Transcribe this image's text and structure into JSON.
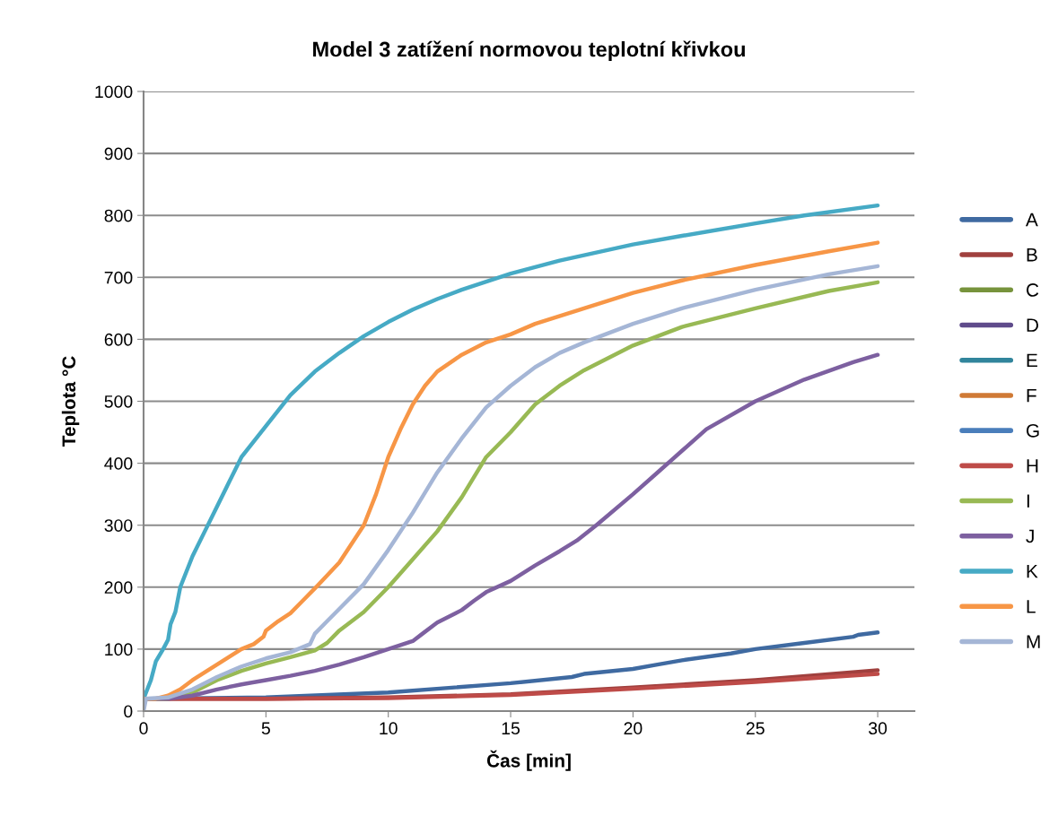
{
  "chart_data": {
    "type": "line",
    "title": "Model 3 zatížení normovou teplotní křivkou",
    "xlabel": "Čas [min]",
    "ylabel": "Teplota °C",
    "xlim": [
      0,
      31.5
    ],
    "xticks": [
      0,
      5,
      10,
      15,
      20,
      25,
      30
    ],
    "ylim": [
      0,
      1000
    ],
    "yticks": [
      0,
      100,
      200,
      300,
      400,
      500,
      600,
      700,
      800,
      900,
      1000
    ],
    "grid": "y",
    "legend": "right",
    "marker": "none",
    "line_style": "solid",
    "series": [
      {
        "name": "A",
        "color": "#3f6aa1",
        "x": [
          0,
          5,
          10,
          15,
          17.5,
          18,
          20,
          21,
          22,
          24,
          25,
          27,
          29,
          29.2,
          30
        ],
        "values": [
          20,
          22,
          30,
          45,
          55,
          60,
          68,
          75,
          82,
          93,
          100,
          110,
          120,
          123,
          127
        ]
      },
      {
        "name": "B",
        "color": "#a0403e",
        "x": [
          0,
          5,
          10,
          15,
          20,
          25,
          30
        ],
        "values": [
          20,
          20,
          22,
          27,
          38,
          50,
          66
        ]
      },
      {
        "name": "C",
        "color": "#77933c"
      },
      {
        "name": "D",
        "color": "#5f4b8b"
      },
      {
        "name": "E",
        "color": "#31859c"
      },
      {
        "name": "F",
        "color": "#d07a35"
      },
      {
        "name": "G",
        "color": "#4a7ebb"
      },
      {
        "name": "H",
        "color": "#be4b48",
        "x": [
          0,
          5,
          10,
          15,
          20,
          25,
          30
        ],
        "values": [
          20,
          20,
          21,
          26,
          36,
          47,
          60
        ]
      },
      {
        "name": "I",
        "color": "#98b954",
        "x": [
          0,
          1,
          2,
          3,
          4,
          5,
          6,
          7,
          7.5,
          8,
          9,
          10,
          11,
          12,
          13,
          14,
          15,
          16,
          17,
          18,
          20,
          22,
          25,
          28,
          30
        ],
        "values": [
          20,
          20,
          30,
          50,
          65,
          77,
          87,
          98,
          110,
          130,
          160,
          200,
          245,
          290,
          345,
          410,
          450,
          495,
          525,
          550,
          590,
          620,
          650,
          678,
          692
        ]
      },
      {
        "name": "J",
        "color": "#7d60a0",
        "x": [
          0,
          1,
          2,
          3,
          4,
          5,
          6,
          7,
          8,
          9,
          10,
          11,
          11.4,
          12,
          13,
          13.5,
          14,
          15,
          16,
          17,
          17.7,
          18.5,
          20,
          21,
          22,
          23,
          25,
          27,
          29,
          30
        ],
        "values": [
          20,
          20,
          25,
          35,
          43,
          50,
          57,
          65,
          75,
          87,
          100,
          113,
          125,
          143,
          163,
          178,
          192,
          210,
          235,
          258,
          275,
          300,
          350,
          385,
          420,
          455,
          500,
          535,
          563,
          575
        ]
      },
      {
        "name": "K",
        "color": "#46aac5",
        "x": [
          0,
          0.3,
          0.5,
          0.8,
          1,
          1.1,
          1.3,
          1.5,
          2,
          2.5,
          3,
          3.5,
          4,
          5,
          6,
          7,
          8,
          9,
          10,
          11,
          12,
          13,
          14,
          15,
          17,
          20,
          22,
          25,
          27,
          30
        ],
        "values": [
          20,
          50,
          80,
          100,
          115,
          140,
          160,
          200,
          250,
          290,
          330,
          370,
          410,
          460,
          510,
          548,
          578,
          605,
          628,
          648,
          665,
          680,
          693,
          706,
          727,
          753,
          767,
          787,
          800,
          816
        ]
      },
      {
        "name": "L",
        "color": "#f79646",
        "x": [
          0,
          0.5,
          1,
          1.5,
          2,
          3,
          4,
          4.5,
          4.9,
          5,
          5.5,
          6,
          6.5,
          7,
          8,
          9,
          9.5,
          10,
          10.5,
          11,
          11.5,
          12,
          13,
          14,
          15,
          16,
          18,
          20,
          22,
          25,
          28,
          30
        ],
        "values": [
          20,
          20,
          25,
          35,
          50,
          75,
          100,
          108,
          120,
          130,
          145,
          158,
          178,
          198,
          240,
          300,
          350,
          410,
          455,
          495,
          525,
          548,
          575,
          595,
          608,
          625,
          650,
          675,
          695,
          720,
          742,
          756
        ]
      },
      {
        "name": "M",
        "color": "#a5b6d6",
        "x": [
          0,
          0.1,
          1,
          2,
          3,
          4,
          5,
          6,
          6.8,
          7,
          7.5,
          8,
          9,
          10,
          11,
          12,
          13,
          14,
          15,
          16,
          17,
          18,
          20,
          22,
          25,
          28,
          30
        ],
        "values": [
          0,
          20,
          22,
          35,
          55,
          72,
          85,
          95,
          108,
          125,
          145,
          165,
          205,
          260,
          320,
          385,
          440,
          490,
          525,
          555,
          578,
          595,
          625,
          650,
          680,
          705,
          718
        ]
      }
    ]
  }
}
